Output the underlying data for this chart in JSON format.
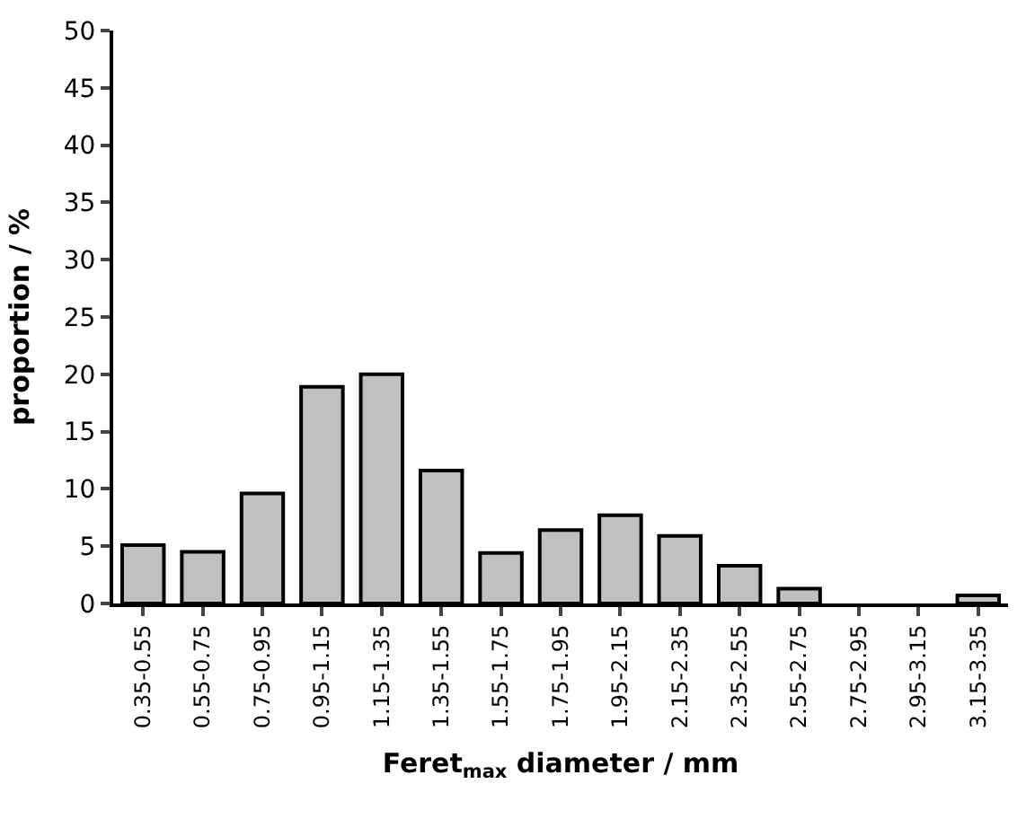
{
  "chart_data": {
    "type": "bar",
    "categories": [
      "0.35-0.55",
      "0.55-0.75",
      "0.75-0.95",
      "0.95-1.15",
      "1.15-1.35",
      "1.35-1.55",
      "1.55-1.75",
      "1.75-1.95",
      "1.95-2.15",
      "2.15-2.35",
      "2.35-2.55",
      "2.55-2.75",
      "2.75-2.95",
      "2.95-3.15",
      "3.15-3.35"
    ],
    "values": [
      5.1,
      4.5,
      9.6,
      18.9,
      20.0,
      11.6,
      4.4,
      6.4,
      7.7,
      5.9,
      3.3,
      1.3,
      0,
      0,
      0.7
    ],
    "color": "#c0c0c0",
    "xlabel": "Feret$_{max}$ diameter / mm",
    "ylabel": "proportion / %",
    "ylim": [
      0,
      50
    ],
    "yticks": [
      0,
      5,
      10,
      15,
      20,
      25,
      30,
      35,
      40,
      45,
      50
    ]
  }
}
